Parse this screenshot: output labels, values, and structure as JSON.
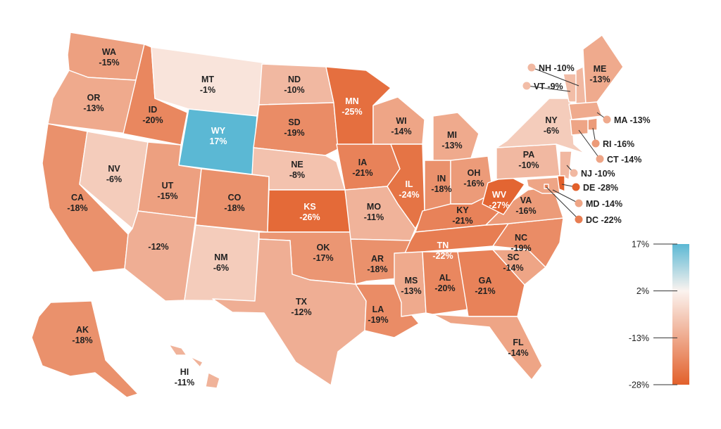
{
  "colors": {
    "neg_max": "#e2602b",
    "mid": "#fbf3ef",
    "pos_max": "#5bb8d4",
    "border": "#ffffff",
    "text": "#222222"
  },
  "states": [
    {
      "abbr": "WA",
      "value": -15,
      "label": "WA",
      "text": "-15%"
    },
    {
      "abbr": "OR",
      "value": -13,
      "label": "OR",
      "text": "-13%"
    },
    {
      "abbr": "CA",
      "value": -18,
      "label": "CA",
      "text": "-18%"
    },
    {
      "abbr": "ID",
      "value": -20,
      "label": "ID",
      "text": "-20%"
    },
    {
      "abbr": "NV",
      "value": -6,
      "label": "NV",
      "text": "-6%"
    },
    {
      "abbr": "MT",
      "value": -1,
      "label": "MT",
      "text": "-1%"
    },
    {
      "abbr": "WY",
      "value": 17,
      "label": "WY",
      "text": "17%"
    },
    {
      "abbr": "UT",
      "value": -15,
      "label": "UT",
      "text": "-15%"
    },
    {
      "abbr": "AZ",
      "value": -12,
      "label": "",
      "text": "-12%"
    },
    {
      "abbr": "CO",
      "value": -18,
      "label": "CO",
      "text": "-18%"
    },
    {
      "abbr": "NM",
      "value": -6,
      "label": "NM",
      "text": "-6%"
    },
    {
      "abbr": "ND",
      "value": -10,
      "label": "ND",
      "text": "-10%"
    },
    {
      "abbr": "SD",
      "value": -19,
      "label": "SD",
      "text": "-19%"
    },
    {
      "abbr": "NE",
      "value": -8,
      "label": "NE",
      "text": "-8%"
    },
    {
      "abbr": "KS",
      "value": -26,
      "label": "KS",
      "text": "-26%"
    },
    {
      "abbr": "OK",
      "value": -17,
      "label": "OK",
      "text": "-17%"
    },
    {
      "abbr": "TX",
      "value": -12,
      "label": "TX",
      "text": "-12%"
    },
    {
      "abbr": "MN",
      "value": -25,
      "label": "MN",
      "text": "-25%"
    },
    {
      "abbr": "IA",
      "value": -21,
      "label": "IA",
      "text": "-21%"
    },
    {
      "abbr": "MO",
      "value": -11,
      "label": "MO",
      "text": "-11%"
    },
    {
      "abbr": "AR",
      "value": -18,
      "label": "AR",
      "text": "-18%"
    },
    {
      "abbr": "LA",
      "value": -19,
      "label": "LA",
      "text": "-19%"
    },
    {
      "abbr": "WI",
      "value": -14,
      "label": "WI",
      "text": "-14%"
    },
    {
      "abbr": "IL",
      "value": -24,
      "label": "IL",
      "text": "-24%"
    },
    {
      "abbr": "MI",
      "value": -13,
      "label": "MI",
      "text": "-13%"
    },
    {
      "abbr": "IN",
      "value": -18,
      "label": "IN",
      "text": "-18%"
    },
    {
      "abbr": "OH",
      "value": -16,
      "label": "OH",
      "text": "-16%"
    },
    {
      "abbr": "KY",
      "value": -21,
      "label": "KY",
      "text": "-21%"
    },
    {
      "abbr": "TN",
      "value": -22,
      "label": "TN",
      "text": "-22%"
    },
    {
      "abbr": "MS",
      "value": -13,
      "label": "MS",
      "text": "-13%"
    },
    {
      "abbr": "AL",
      "value": -20,
      "label": "AL",
      "text": "-20%"
    },
    {
      "abbr": "GA",
      "value": -21,
      "label": "GA",
      "text": "-21%"
    },
    {
      "abbr": "FL",
      "value": -14,
      "label": "FL",
      "text": "-14%"
    },
    {
      "abbr": "SC",
      "value": -14,
      "label": "SC",
      "text": "-14%"
    },
    {
      "abbr": "NC",
      "value": -19,
      "label": "NC",
      "text": "-19%"
    },
    {
      "abbr": "VA",
      "value": -16,
      "label": "VA",
      "text": "-16%"
    },
    {
      "abbr": "WV",
      "value": -27,
      "label": "WV",
      "text": "-27%"
    },
    {
      "abbr": "PA",
      "value": -10,
      "label": "PA",
      "text": "-10%"
    },
    {
      "abbr": "NY",
      "value": -6,
      "label": "NY",
      "text": "-6%"
    },
    {
      "abbr": "VT",
      "value": -9,
      "label": "VT",
      "text": "-9%"
    },
    {
      "abbr": "NH",
      "value": -10,
      "label": "NH",
      "text": "-10%"
    },
    {
      "abbr": "ME",
      "value": -13,
      "label": "ME",
      "text": "-13%"
    },
    {
      "abbr": "MA",
      "value": -13,
      "label": "MA",
      "text": "-13%"
    },
    {
      "abbr": "RI",
      "value": -16,
      "label": "RI",
      "text": "-16%"
    },
    {
      "abbr": "CT",
      "value": -14,
      "label": "CT",
      "text": "-14%"
    },
    {
      "abbr": "NJ",
      "value": -10,
      "label": "NJ",
      "text": "-10%"
    },
    {
      "abbr": "DE",
      "value": -28,
      "label": "DE",
      "text": "-28%"
    },
    {
      "abbr": "MD",
      "value": -14,
      "label": "MD",
      "text": "-14%"
    },
    {
      "abbr": "DC",
      "value": -22,
      "label": "DC",
      "text": "-22%"
    },
    {
      "abbr": "AK",
      "value": -18,
      "label": "AK",
      "text": "-18%"
    },
    {
      "abbr": "HI",
      "value": -11,
      "label": "HI",
      "text": "-11%"
    }
  ],
  "legend": {
    "min": -28,
    "max": 17,
    "ticks": [
      {
        "value": 17,
        "label": "17%"
      },
      {
        "value": 2,
        "label": "2%"
      },
      {
        "value": -13,
        "label": "-13%"
      },
      {
        "value": -28,
        "label": "-28%"
      }
    ]
  }
}
